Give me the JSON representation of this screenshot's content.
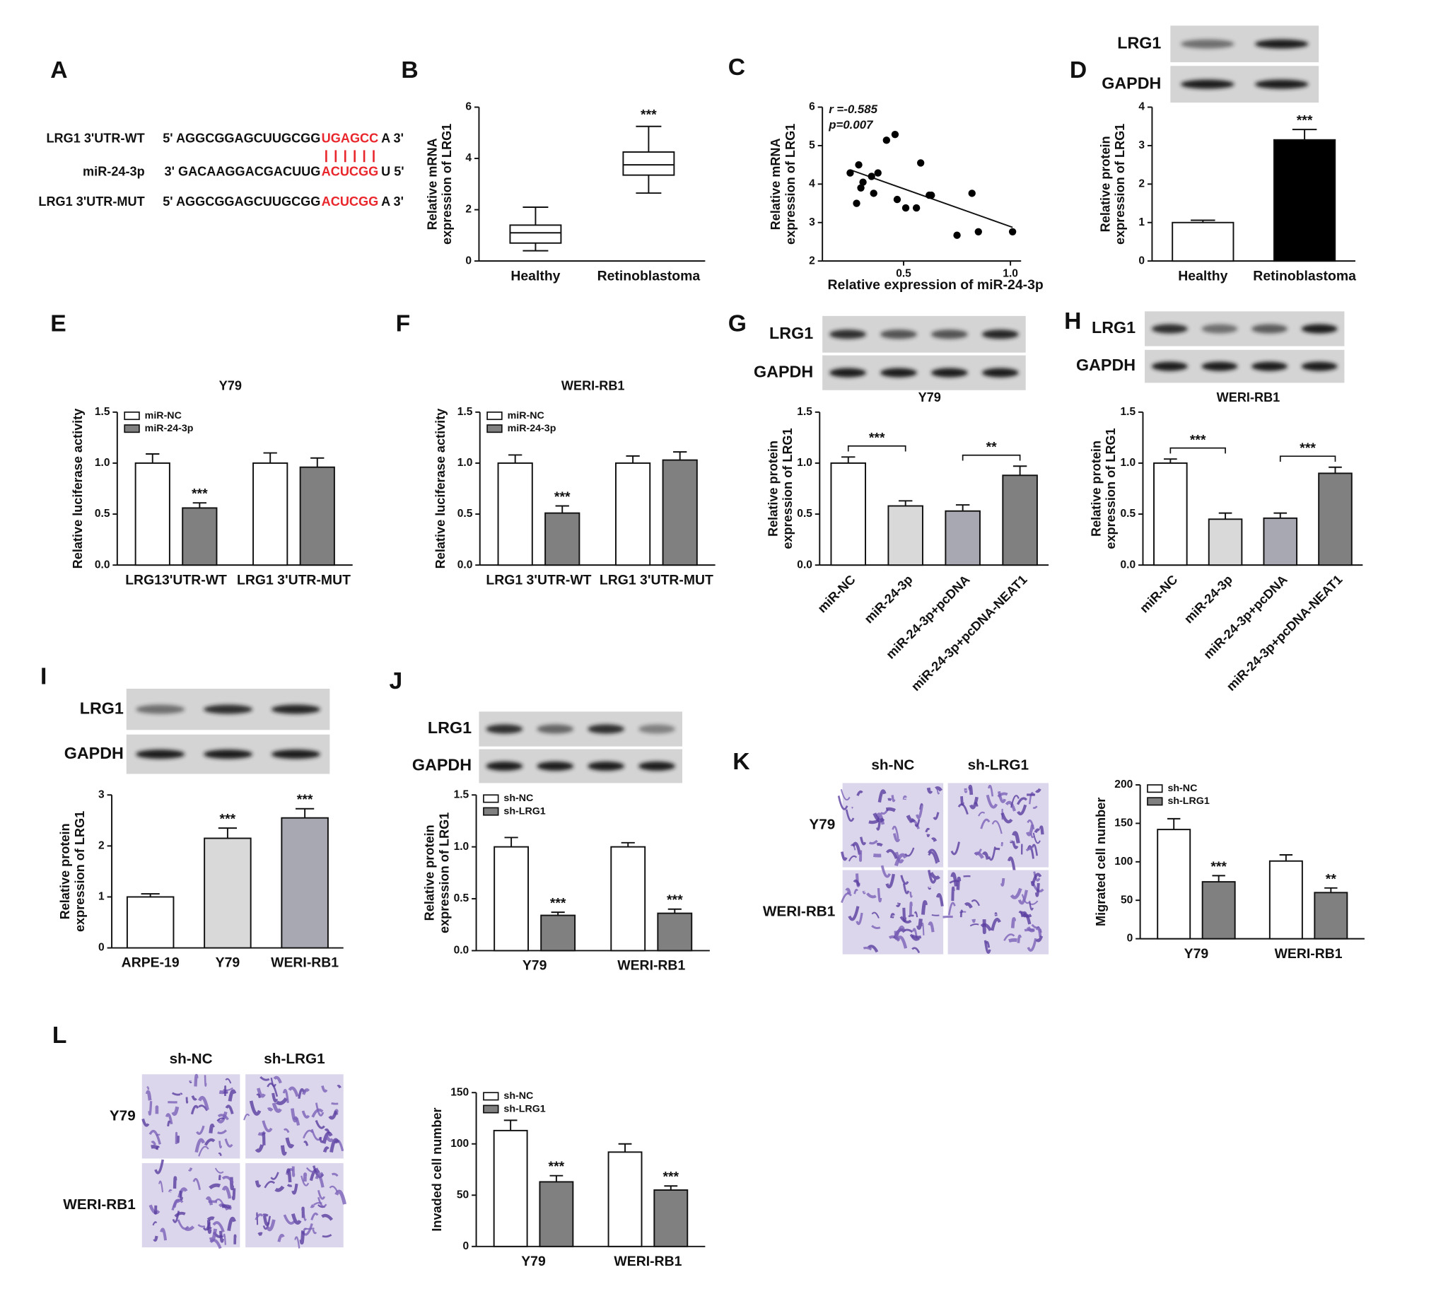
{
  "panel_letters": [
    "A",
    "B",
    "C",
    "D",
    "E",
    "F",
    "G",
    "H",
    "I",
    "J",
    "K",
    "L"
  ],
  "sequence": {
    "rows": [
      {
        "label": "LRG1 3'UTR-WT",
        "parts": [
          "5' AGGCGGAGCUUGCGG",
          "UGAGCC",
          "A 3'"
        ]
      },
      {
        "label": "miR-24-3p",
        "parts": [
          "3' GACAAGGACGACUUG",
          "ACUCGG",
          "U 5'"
        ]
      },
      {
        "label": "LRG1 3'UTR-MUT",
        "parts": [
          "5' AGGCGGAGCUUGCGG",
          "ACUCGG",
          "A 3'"
        ]
      }
    ]
  },
  "blots": [
    {
      "labels": [
        "LRG1",
        "GAPDH"
      ]
    },
    {
      "labels": [
        "LRG1",
        "GAPDH"
      ]
    },
    {
      "labels": [
        "LRG1",
        "GAPDH"
      ]
    },
    {
      "labels": [
        "LRG1",
        "GAPDH"
      ]
    },
    {
      "labels": [
        "LRG1",
        "GAPDH"
      ]
    }
  ],
  "micrographs": [
    {
      "columns": [
        "sh-NC",
        "sh-LRG1"
      ],
      "rows": [
        "Y79",
        "WERI-RB1"
      ]
    },
    {
      "columns": [
        "sh-NC",
        "sh-LRG1"
      ],
      "rows": [
        "Y79",
        "WERI-RB1"
      ]
    }
  ],
  "chart_data": [
    {
      "type": "box",
      "categories": [
        "Healthy",
        "Retinoblastoma"
      ],
      "min": [
        0.4,
        2.65
      ],
      "q1": [
        0.7,
        3.35
      ],
      "median": [
        1.1,
        3.75
      ],
      "q3": [
        1.4,
        4.25
      ],
      "max": [
        2.1,
        5.25
      ],
      "annotations": [
        null,
        "***"
      ],
      "ylabel": [
        "Relative mRNA",
        "expression of LRG1"
      ],
      "ylim": [
        0,
        6
      ],
      "yticks": [
        0,
        2,
        4,
        6
      ],
      "color": "#ffffff"
    },
    {
      "type": "scatter",
      "x": [
        0.25,
        0.28,
        0.29,
        0.3,
        0.31,
        0.35,
        0.36,
        0.38,
        0.42,
        0.46,
        0.47,
        0.51,
        0.56,
        0.58,
        0.62,
        0.63,
        0.75,
        0.82,
        0.85,
        1.01
      ],
      "values": [
        4.29,
        3.5,
        4.5,
        3.9,
        4.05,
        4.2,
        3.76,
        4.29,
        5.14,
        5.29,
        3.6,
        3.38,
        3.38,
        4.55,
        3.71,
        3.71,
        2.67,
        3.76,
        2.76,
        2.76
      ],
      "annotations": [
        "r =-0.585",
        "p=0.007"
      ],
      "xlabel": "Relative expression of miR-24-3p",
      "ylabel": [
        "Relative mRNA",
        "expression of LRG1"
      ],
      "xlim": [
        0.12,
        1.05
      ],
      "xticks": [
        0.5,
        {
          "value": 1,
          "label": "1.0"
        }
      ],
      "ylim": [
        2,
        6
      ],
      "yticks": [
        2,
        3,
        4,
        5,
        6
      ],
      "color": "#000000"
    },
    {
      "type": "bar",
      "categories": [
        "Healthy",
        "Retinoblastoma"
      ],
      "values": [
        1.0,
        3.15
      ],
      "errors": [
        0.06,
        0.27
      ],
      "colors": [
        "#ffffff",
        "#000000"
      ],
      "annotations": [
        null,
        "***"
      ],
      "ylabel": [
        "Relative protein",
        "expression of LRG1"
      ],
      "ylim": [
        0,
        4
      ],
      "yticks": [
        0,
        1,
        2,
        3,
        4
      ]
    },
    {
      "type": "bar",
      "title": "Y79",
      "categories": [
        "LRG13'UTR-WT",
        "LRG1 3'UTR-MUT"
      ],
      "series": [
        {
          "name": "miR-NC",
          "color": "#ffffff",
          "values": [
            1.0,
            1.0
          ],
          "errors": [
            0.09,
            0.1
          ],
          "annotations": [
            null,
            null
          ]
        },
        {
          "name": "miR-24-3p",
          "color": "#808080",
          "values": [
            0.56,
            0.96
          ],
          "errors": [
            0.05,
            0.09
          ],
          "annotations": [
            "***",
            null
          ]
        }
      ],
      "legend": "upper left",
      "ylabel": "Relative luciferase activity",
      "ylim": [
        0,
        1.5
      ],
      "yticks": [
        {
          "value": 0,
          "label": "0.0"
        },
        0.5,
        {
          "value": 1,
          "label": "1.0"
        },
        1.5
      ]
    },
    {
      "type": "bar",
      "title": "WERI-RB1",
      "categories": [
        "LRG1 3'UTR-WT",
        "LRG1 3'UTR-MUT"
      ],
      "series": [
        {
          "name": "miR-NC",
          "color": "#ffffff",
          "values": [
            1.0,
            1.0
          ],
          "errors": [
            0.08,
            0.07
          ],
          "annotations": [
            null,
            null
          ]
        },
        {
          "name": "miR-24-3p",
          "color": "#808080",
          "values": [
            0.51,
            1.03
          ],
          "errors": [
            0.07,
            0.08
          ],
          "annotations": [
            "***",
            null
          ]
        }
      ],
      "legend": "upper left",
      "ylabel": "Relative luciferase activity",
      "ylim": [
        0,
        1.5
      ],
      "yticks": [
        {
          "value": 0,
          "label": "0.0"
        },
        0.5,
        {
          "value": 1,
          "label": "1.0"
        },
        1.5
      ]
    },
    {
      "type": "bar",
      "title": "Y79",
      "categories": [
        "miR-NC",
        "miR-24-3p",
        "miR-24-3p+pcDNA",
        "miR-24-3p+pcDNA-NEAT1"
      ],
      "values": [
        1.0,
        0.58,
        0.53,
        0.88
      ],
      "errors": [
        0.06,
        0.05,
        0.06,
        0.09
      ],
      "colors": [
        "#ffffff",
        "#d9d9d9",
        "#a8a8b2",
        "#808080"
      ],
      "brackets": [
        {
          "categories": [
            "miR-NC",
            "miR-24-3p"
          ],
          "label": "***"
        },
        {
          "categories": [
            "miR-24-3p+pcDNA",
            "miR-24-3p+pcDNA-NEAT1"
          ],
          "label": "**"
        }
      ],
      "xtick_rotation": 45,
      "ylabel": [
        "Relative protein",
        "expression of LRG1"
      ],
      "ylim": [
        0,
        1.5
      ],
      "yticks": [
        {
          "value": 0,
          "label": "0.0"
        },
        0.5,
        {
          "value": 1,
          "label": "1.0"
        },
        1.5
      ]
    },
    {
      "type": "bar",
      "title": "WERI-RB1",
      "categories": [
        "miR-NC",
        "miR-24-3p",
        "miR-24-3p+pcDNA",
        "miR-24-3p+pcDNA-NEAT1"
      ],
      "values": [
        1.0,
        0.45,
        0.46,
        0.9
      ],
      "errors": [
        0.04,
        0.06,
        0.05,
        0.06
      ],
      "colors": [
        "#ffffff",
        "#d9d9d9",
        "#a8a8b2",
        "#808080"
      ],
      "brackets": [
        {
          "categories": [
            "miR-NC",
            "miR-24-3p"
          ],
          "label": "***"
        },
        {
          "categories": [
            "miR-24-3p+pcDNA",
            "miR-24-3p+pcDNA-NEAT1"
          ],
          "label": "***"
        }
      ],
      "xtick_rotation": 45,
      "ylabel": [
        "Relative protein",
        "expression of LRG1"
      ],
      "ylim": [
        0,
        1.5
      ],
      "yticks": [
        {
          "value": 0,
          "label": "0.0"
        },
        0.5,
        {
          "value": 1,
          "label": "1.0"
        },
        1.5
      ]
    },
    {
      "type": "bar",
      "categories": [
        "ARPE-19",
        "Y79",
        "WERI-RB1"
      ],
      "values": [
        1.0,
        2.15,
        2.55
      ],
      "errors": [
        0.06,
        0.2,
        0.18
      ],
      "colors": [
        "#ffffff",
        "#d9d9d9",
        "#a8a8b2"
      ],
      "annotations": [
        null,
        "***",
        "***"
      ],
      "ylabel": [
        "Relative protein",
        "expression of LRG1"
      ],
      "ylim": [
        0,
        3
      ],
      "yticks": [
        0,
        1,
        2,
        3
      ]
    },
    {
      "type": "bar",
      "categories": [
        "Y79",
        "WERI-RB1"
      ],
      "series": [
        {
          "name": "sh-NC",
          "color": "#ffffff",
          "values": [
            1.0,
            1.0
          ],
          "errors": [
            0.09,
            0.04
          ],
          "annotations": [
            null,
            null
          ]
        },
        {
          "name": "sh-LRG1",
          "color": "#808080",
          "values": [
            0.34,
            0.36
          ],
          "errors": [
            0.03,
            0.04
          ],
          "annotations": [
            "***",
            "***"
          ]
        }
      ],
      "legend": "upper left",
      "ylabel": [
        "Relative protein",
        "expression of LRG1"
      ],
      "ylim": [
        0,
        1.5
      ],
      "yticks": [
        {
          "value": 0,
          "label": "0.0"
        },
        0.5,
        {
          "value": 1,
          "label": "1.0"
        },
        1.5
      ]
    },
    {
      "type": "bar",
      "categories": [
        "Y79",
        "WERI-RB1"
      ],
      "series": [
        {
          "name": "sh-NC",
          "color": "#ffffff",
          "values": [
            142,
            101
          ],
          "errors": [
            14,
            8
          ],
          "annotations": [
            null,
            null
          ]
        },
        {
          "name": "sh-LRG1",
          "color": "#808080",
          "values": [
            74,
            60
          ],
          "errors": [
            8,
            6
          ],
          "annotations": [
            "***",
            "**"
          ]
        }
      ],
      "legend": "upper left",
      "ylabel": "Migrated cell number",
      "ylim": [
        0,
        200
      ],
      "yticks": [
        0,
        50,
        100,
        150,
        200
      ]
    },
    {
      "type": "bar",
      "categories": [
        "Y79",
        "WERI-RB1"
      ],
      "series": [
        {
          "name": "sh-NC",
          "color": "#ffffff",
          "values": [
            113,
            92
          ],
          "errors": [
            10,
            8
          ],
          "annotations": [
            null,
            null
          ]
        },
        {
          "name": "sh-LRG1",
          "color": "#808080",
          "values": [
            63,
            55
          ],
          "errors": [
            6,
            4
          ],
          "annotations": [
            "***",
            "***"
          ]
        }
      ],
      "legend": "upper left",
      "ylabel": "Invaded cell number",
      "ylim": [
        0,
        150
      ],
      "yticks": [
        0,
        50,
        100,
        150
      ]
    }
  ]
}
